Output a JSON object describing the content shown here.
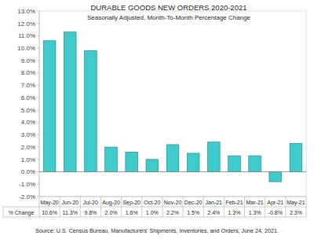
{
  "chart_data": {
    "type": "bar",
    "title": "DURABLE GOODS NEW ORDERS 2020-2021",
    "subtitle": "Seasonally Adjusted,  Month-To-Month Percentage Change",
    "categories": [
      "May-20",
      "Jun-20",
      "Jul-20",
      "Aug-20",
      "Sep-20",
      "Oct-20",
      "Nov-20",
      "Dec-20",
      "Jan-21",
      "Feb-21",
      "Mar-21",
      "Apr-21",
      "May-21"
    ],
    "values": [
      10.6,
      11.3,
      9.8,
      2.0,
      1.6,
      1.0,
      2.2,
      1.5,
      2.4,
      1.3,
      1.3,
      -0.8,
      2.3
    ],
    "value_labels": [
      "10.6%",
      "11.3%",
      "9.8%",
      "2.0%",
      "1.6%",
      "1.0%",
      "2.2%",
      "1.5%",
      "2.4%",
      "1.3%",
      "1.3%",
      "-0.8%",
      "2.3%"
    ],
    "data_labels": true,
    "row_label": "% Change",
    "source": "Source: U.S. Census Bureau, Manufacturers' Shipments, Inventories, and Orders, June 24, 2021.",
    "color": "#3fcbcb",
    "grid": false,
    "ylim": [
      -2,
      13
    ],
    "yticks": [
      {
        "value": -2,
        "label": "-2.0%"
      },
      {
        "value": -1,
        "label": "-1.0%"
      },
      {
        "value": 0,
        "label": "0.0%"
      },
      {
        "value": 1,
        "label": "1.0%"
      },
      {
        "value": 2,
        "label": "2.0%"
      },
      {
        "value": 3,
        "label": "3.0%"
      },
      {
        "value": 4,
        "label": "4.0%"
      },
      {
        "value": 5,
        "label": "5.0%"
      },
      {
        "value": 6,
        "label": "6.0%"
      },
      {
        "value": 7,
        "label": "7.0%"
      },
      {
        "value": 8,
        "label": "8.0%"
      },
      {
        "value": 9,
        "label": "9.0%"
      },
      {
        "value": 10,
        "label": "10.0%"
      },
      {
        "value": 11,
        "label": "11.0%"
      },
      {
        "value": 12,
        "label": "12.0%"
      },
      {
        "value": 13,
        "label": "13.0%"
      }
    ]
  }
}
